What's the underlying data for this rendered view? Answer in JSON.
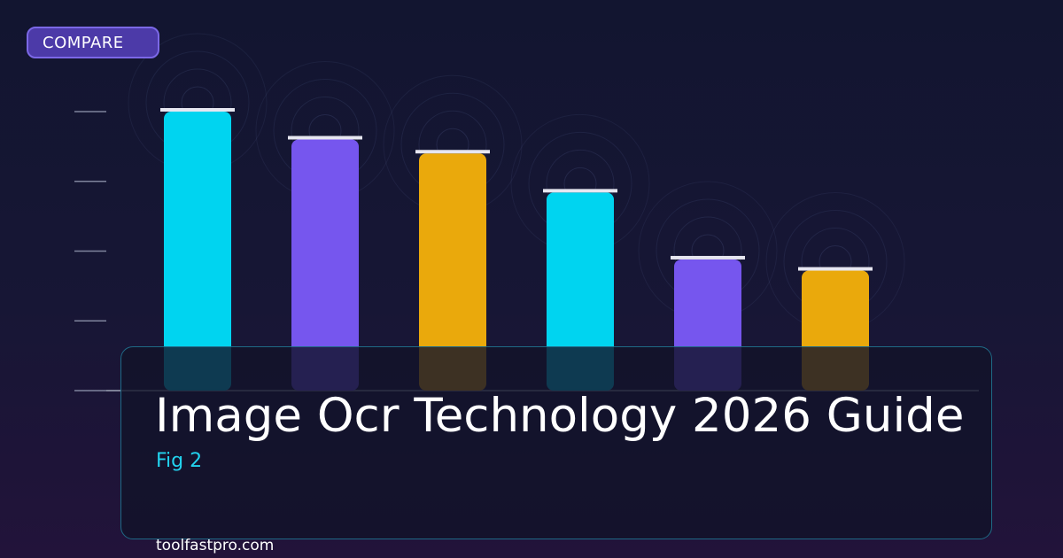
{
  "badge": {
    "label": "COMPARE"
  },
  "title": "Image Ocr Technology 2026 Guide",
  "subtitle": "Fig 2",
  "footer": {
    "site": "toolfastpro.com"
  },
  "colors": {
    "bar_cyan": "#00d4f0",
    "bar_purple": "#7656ee",
    "bar_amber": "#eaa90c",
    "cap": "#e6e6f0",
    "subtitle_accent": "#22d3ee",
    "badge_fill": "#4c3aa8"
  },
  "chart_data": {
    "type": "bar",
    "values": [
      100,
      90,
      85,
      71,
      47,
      43
    ],
    "bar_colors": [
      "#00d4f0",
      "#7656ee",
      "#eaa90c",
      "#00d4f0",
      "#7656ee",
      "#eaa90c"
    ],
    "ylim": [
      0,
      100
    ],
    "ticks": 5,
    "grid": false,
    "title": "",
    "xlabel": "",
    "ylabel": ""
  }
}
